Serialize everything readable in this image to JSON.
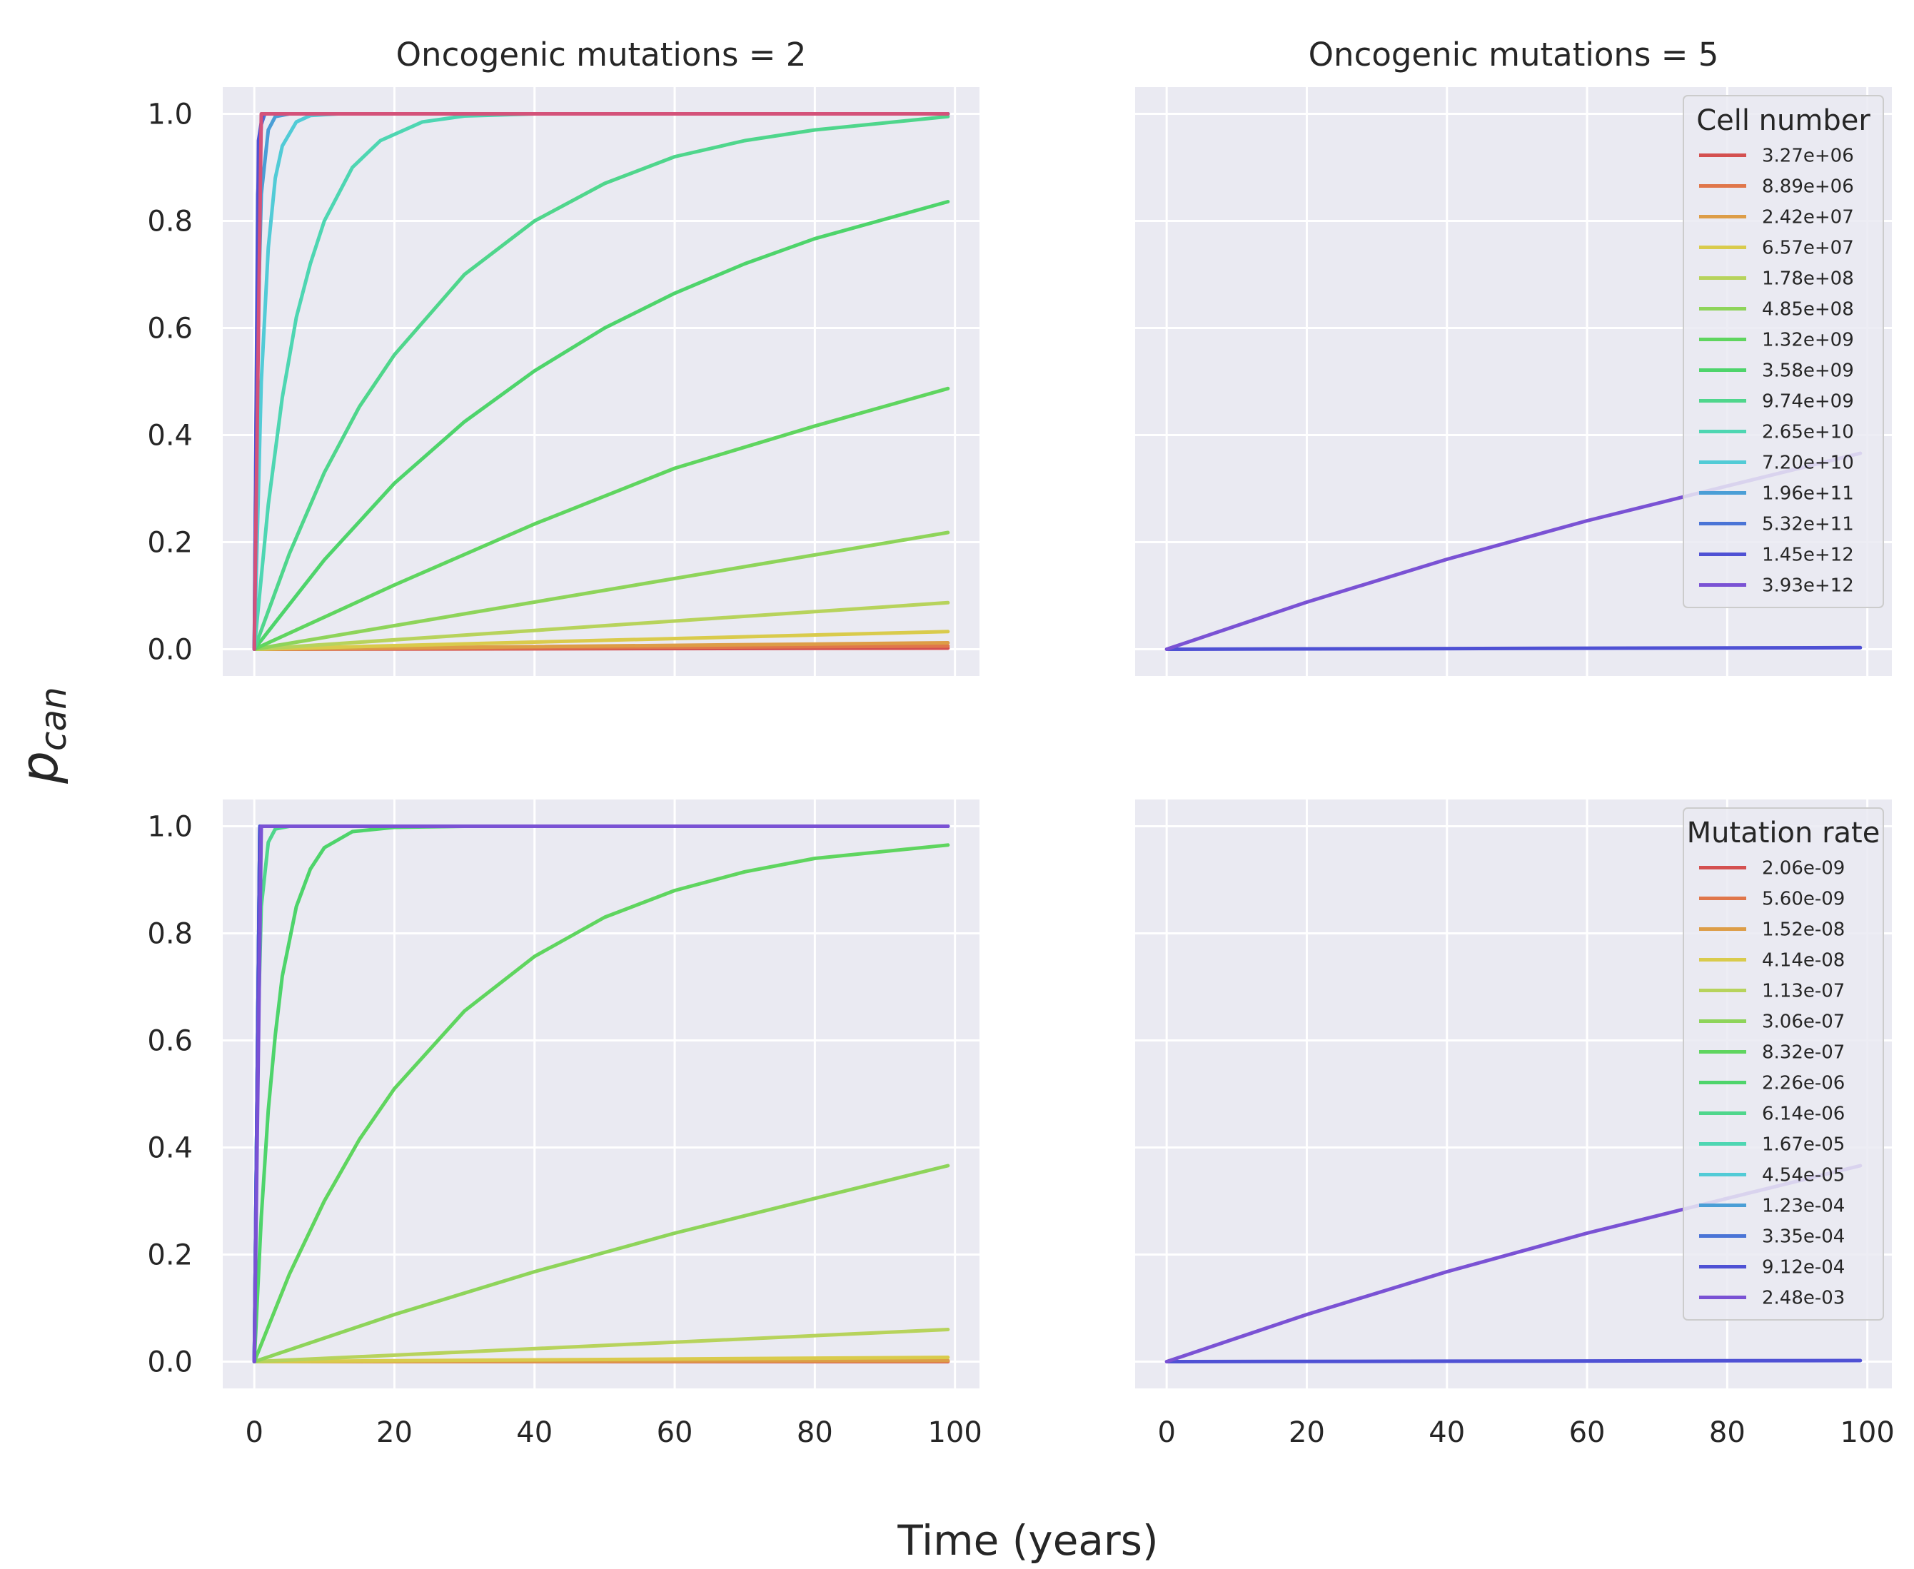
{
  "figure": {
    "xlabel": "Time (years)",
    "ylabel": "p",
    "ylabel_subscript": "can"
  },
  "chart_data": [
    {
      "type": "line",
      "title": "Oncogenic mutations = 2",
      "xlim": [
        -4.5,
        103.5
      ],
      "ylim": [
        -0.05,
        1.05
      ],
      "x_ticks": [
        "0",
        "20",
        "40",
        "60",
        "80",
        "100"
      ],
      "y_ticks": [
        "0.0",
        "0.2",
        "0.4",
        "0.6",
        "0.8",
        "1.0"
      ],
      "x_tick_labels_visible": false,
      "y_tick_labels_visible": true,
      "grid": true,
      "legend": null,
      "series": [
        {
          "color": "#d45050",
          "values": [
            [
              0,
              0
            ],
            [
              99,
              0.002
            ]
          ]
        },
        {
          "color": "#e0764a",
          "values": [
            [
              0,
              0
            ],
            [
              99,
              0.006
            ]
          ]
        },
        {
          "color": "#dd9d47",
          "values": [
            [
              0,
              0
            ],
            [
              99,
              0.012
            ]
          ]
        },
        {
          "color": "#d9cb4c",
          "values": [
            [
              0,
              0
            ],
            [
              99,
              0.033
            ]
          ]
        },
        {
          "color": "#b7d35c",
          "values": [
            [
              0,
              0
            ],
            [
              99,
              0.087
            ]
          ]
        },
        {
          "color": "#8ed45a",
          "values": [
            [
              0,
              0
            ],
            [
              99,
              0.218
            ]
          ]
        },
        {
          "color": "#5fd55f",
          "values": [
            [
              0,
              0
            ],
            [
              20,
              0.12
            ],
            [
              40,
              0.234
            ],
            [
              60,
              0.338
            ],
            [
              80,
              0.417
            ],
            [
              99,
              0.487
            ]
          ]
        },
        {
          "color": "#4ed46b",
          "values": [
            [
              0,
              0
            ],
            [
              10,
              0.167
            ],
            [
              20,
              0.31
            ],
            [
              30,
              0.425
            ],
            [
              40,
              0.52
            ],
            [
              50,
              0.6
            ],
            [
              60,
              0.665
            ],
            [
              70,
              0.72
            ],
            [
              80,
              0.767
            ],
            [
              99,
              0.836
            ]
          ]
        },
        {
          "color": "#4fd68c",
          "values": [
            [
              0,
              0
            ],
            [
              5,
              0.178
            ],
            [
              10,
              0.33
            ],
            [
              15,
              0.453
            ],
            [
              20,
              0.55
            ],
            [
              30,
              0.7
            ],
            [
              40,
              0.8
            ],
            [
              50,
              0.87
            ],
            [
              60,
              0.92
            ],
            [
              70,
              0.95
            ],
            [
              80,
              0.97
            ],
            [
              99,
              0.995
            ]
          ]
        },
        {
          "color": "#4ed6b2",
          "values": [
            [
              0,
              0
            ],
            [
              2,
              0.27
            ],
            [
              4,
              0.47
            ],
            [
              6,
              0.62
            ],
            [
              8,
              0.72
            ],
            [
              10,
              0.8
            ],
            [
              14,
              0.9
            ],
            [
              18,
              0.95
            ],
            [
              24,
              0.985
            ],
            [
              30,
              0.996
            ],
            [
              40,
              1.0
            ],
            [
              99,
              1.0
            ]
          ]
        },
        {
          "color": "#52cbd6",
          "values": [
            [
              0,
              0
            ],
            [
              1,
              0.5
            ],
            [
              2,
              0.75
            ],
            [
              3,
              0.88
            ],
            [
              4,
              0.94
            ],
            [
              6,
              0.985
            ],
            [
              8,
              0.997
            ],
            [
              12,
              1.0
            ],
            [
              99,
              1.0
            ]
          ]
        },
        {
          "color": "#4a9ed6",
          "values": [
            [
              0,
              0
            ],
            [
              0.5,
              0.6
            ],
            [
              1,
              0.85
            ],
            [
              2,
              0.97
            ],
            [
              3,
              0.995
            ],
            [
              5,
              1.0
            ],
            [
              99,
              1.0
            ]
          ]
        },
        {
          "color": "#4a74d6",
          "values": [
            [
              0,
              0
            ],
            [
              0.5,
              0.85
            ],
            [
              1,
              0.98
            ],
            [
              1.5,
              1.0
            ],
            [
              99,
              1.0
            ]
          ]
        },
        {
          "color": "#4f51d4",
          "values": [
            [
              0,
              0
            ],
            [
              0.6,
              0.95
            ],
            [
              1.2,
              1.0
            ],
            [
              99,
              1.0
            ]
          ]
        },
        {
          "color": "#d4527a",
          "values": [
            [
              0,
              0
            ],
            [
              1,
              1.0
            ],
            [
              99,
              1.0
            ]
          ]
        }
      ]
    },
    {
      "type": "line",
      "title": "Oncogenic mutations = 5",
      "xlim": [
        -4.5,
        103.5
      ],
      "ylim": [
        -0.05,
        1.05
      ],
      "x_ticks": [
        "0",
        "20",
        "40",
        "60",
        "80",
        "100"
      ],
      "y_ticks": [
        "0.0",
        "0.2",
        "0.4",
        "0.6",
        "0.8",
        "1.0"
      ],
      "x_tick_labels_visible": false,
      "y_tick_labels_visible": false,
      "grid": true,
      "legend": {
        "title": "Cell number",
        "placement": "upper right",
        "entries": [
          {
            "label": "3.27e+06",
            "color": "#d45050"
          },
          {
            "label": "8.89e+06",
            "color": "#e0764a"
          },
          {
            "label": "2.42e+07",
            "color": "#dd9d47"
          },
          {
            "label": "6.57e+07",
            "color": "#d9cb4c"
          },
          {
            "label": "1.78e+08",
            "color": "#b7d35c"
          },
          {
            "label": "4.85e+08",
            "color": "#8ed45a"
          },
          {
            "label": "1.32e+09",
            "color": "#5fd55f"
          },
          {
            "label": "3.58e+09",
            "color": "#4ed46b"
          },
          {
            "label": "9.74e+09",
            "color": "#4fd68c"
          },
          {
            "label": "2.65e+10",
            "color": "#4ed6b2"
          },
          {
            "label": "7.20e+10",
            "color": "#52cbd6"
          },
          {
            "label": "1.96e+11",
            "color": "#4a9ed6"
          },
          {
            "label": "5.32e+11",
            "color": "#4a74d6"
          },
          {
            "label": "1.45e+12",
            "color": "#4f51d4"
          },
          {
            "label": "3.93e+12",
            "color": "#7a52d4"
          }
        ]
      },
      "series": [
        {
          "color": "#4f51d4",
          "values": [
            [
              0,
              0
            ],
            [
              99,
              0.003
            ]
          ]
        },
        {
          "color": "#7a52d4",
          "values": [
            [
              0,
              0
            ],
            [
              20,
              0.088
            ],
            [
              40,
              0.168
            ],
            [
              60,
              0.24
            ],
            [
              80,
              0.305
            ],
            [
              99,
              0.366
            ]
          ]
        }
      ]
    },
    {
      "type": "line",
      "title": "",
      "xlim": [
        -4.5,
        103.5
      ],
      "ylim": [
        -0.05,
        1.05
      ],
      "x_ticks": [
        "0",
        "20",
        "40",
        "60",
        "80",
        "100"
      ],
      "y_ticks": [
        "0.0",
        "0.2",
        "0.4",
        "0.6",
        "0.8",
        "1.0"
      ],
      "x_tick_labels_visible": true,
      "y_tick_labels_visible": true,
      "grid": true,
      "legend": null,
      "series": [
        {
          "color": "#d45050",
          "values": [
            [
              0,
              0
            ],
            [
              99,
              0.0
            ]
          ]
        },
        {
          "color": "#e0764a",
          "values": [
            [
              0,
              0
            ],
            [
              99,
              0.001
            ]
          ]
        },
        {
          "color": "#dd9d47",
          "values": [
            [
              0,
              0
            ],
            [
              99,
              0.002
            ]
          ]
        },
        {
          "color": "#d9cb4c",
          "values": [
            [
              0,
              0
            ],
            [
              99,
              0.008
            ]
          ]
        },
        {
          "color": "#b7d35c",
          "values": [
            [
              0,
              0
            ],
            [
              99,
              0.06
            ]
          ]
        },
        {
          "color": "#8ed45a",
          "values": [
            [
              0,
              0
            ],
            [
              20,
              0.088
            ],
            [
              40,
              0.168
            ],
            [
              60,
              0.24
            ],
            [
              80,
              0.305
            ],
            [
              99,
              0.366
            ]
          ]
        },
        {
          "color": "#5fd55f",
          "values": [
            [
              0,
              0
            ],
            [
              5,
              0.163
            ],
            [
              10,
              0.3
            ],
            [
              15,
              0.415
            ],
            [
              20,
              0.51
            ],
            [
              30,
              0.655
            ],
            [
              40,
              0.757
            ],
            [
              50,
              0.83
            ],
            [
              60,
              0.88
            ],
            [
              70,
              0.915
            ],
            [
              80,
              0.94
            ],
            [
              99,
              0.965
            ]
          ]
        },
        {
          "color": "#4ed46b",
          "values": [
            [
              0,
              0
            ],
            [
              1,
              0.27
            ],
            [
              2,
              0.47
            ],
            [
              3,
              0.61
            ],
            [
              4,
              0.72
            ],
            [
              6,
              0.85
            ],
            [
              8,
              0.92
            ],
            [
              10,
              0.96
            ],
            [
              14,
              0.99
            ],
            [
              20,
              0.998
            ],
            [
              30,
              1.0
            ],
            [
              99,
              1.0
            ]
          ]
        },
        {
          "color": "#4fd68c",
          "values": [
            [
              0,
              0
            ],
            [
              0.5,
              0.6
            ],
            [
              1,
              0.85
            ],
            [
              2,
              0.97
            ],
            [
              3,
              0.995
            ],
            [
              5,
              1.0
            ],
            [
              99,
              1.0
            ]
          ]
        },
        {
          "color": "#4ed6b2",
          "values": [
            [
              0,
              0
            ],
            [
              0.8,
              1.0
            ],
            [
              99,
              1.0
            ]
          ]
        },
        {
          "color": "#52cbd6",
          "values": [
            [
              0,
              0
            ],
            [
              0.8,
              1.0
            ],
            [
              99,
              1.0
            ]
          ]
        },
        {
          "color": "#4a9ed6",
          "values": [
            [
              0,
              0
            ],
            [
              0.8,
              1.0
            ],
            [
              99,
              1.0
            ]
          ]
        },
        {
          "color": "#4a74d6",
          "values": [
            [
              0,
              0
            ],
            [
              0.8,
              1.0
            ],
            [
              99,
              1.0
            ]
          ]
        },
        {
          "color": "#4f51d4",
          "values": [
            [
              0,
              0
            ],
            [
              0.8,
              1.0
            ],
            [
              99,
              1.0
            ]
          ]
        },
        {
          "color": "#7a52d4",
          "values": [
            [
              0,
              0
            ],
            [
              1,
              1.0
            ],
            [
              99,
              1.0
            ]
          ]
        }
      ]
    },
    {
      "type": "line",
      "title": "",
      "xlim": [
        -4.5,
        103.5
      ],
      "ylim": [
        -0.05,
        1.05
      ],
      "x_ticks": [
        "0",
        "20",
        "40",
        "60",
        "80",
        "100"
      ],
      "y_ticks": [
        "0.0",
        "0.2",
        "0.4",
        "0.6",
        "0.8",
        "1.0"
      ],
      "x_tick_labels_visible": true,
      "y_tick_labels_visible": false,
      "grid": true,
      "legend": {
        "title": "Mutation rate",
        "placement": "upper right",
        "entries": [
          {
            "label": "2.06e-09",
            "color": "#d45050"
          },
          {
            "label": "5.60e-09",
            "color": "#e0764a"
          },
          {
            "label": "1.52e-08",
            "color": "#dd9d47"
          },
          {
            "label": "4.14e-08",
            "color": "#d9cb4c"
          },
          {
            "label": "1.13e-07",
            "color": "#b7d35c"
          },
          {
            "label": "3.06e-07",
            "color": "#8ed45a"
          },
          {
            "label": "8.32e-07",
            "color": "#5fd55f"
          },
          {
            "label": "2.26e-06",
            "color": "#4ed46b"
          },
          {
            "label": "6.14e-06",
            "color": "#4fd68c"
          },
          {
            "label": "1.67e-05",
            "color": "#4ed6b2"
          },
          {
            "label": "4.54e-05",
            "color": "#52cbd6"
          },
          {
            "label": "1.23e-04",
            "color": "#4a9ed6"
          },
          {
            "label": "3.35e-04",
            "color": "#4a74d6"
          },
          {
            "label": "9.12e-04",
            "color": "#4f51d4"
          },
          {
            "label": "2.48e-03",
            "color": "#7a52d4"
          }
        ]
      },
      "series": [
        {
          "color": "#4f51d4",
          "values": [
            [
              0,
              0
            ],
            [
              99,
              0.002
            ]
          ]
        },
        {
          "color": "#7a52d4",
          "values": [
            [
              0,
              0
            ],
            [
              20,
              0.088
            ],
            [
              40,
              0.168
            ],
            [
              60,
              0.24
            ],
            [
              80,
              0.305
            ],
            [
              99,
              0.366
            ]
          ]
        }
      ]
    }
  ]
}
